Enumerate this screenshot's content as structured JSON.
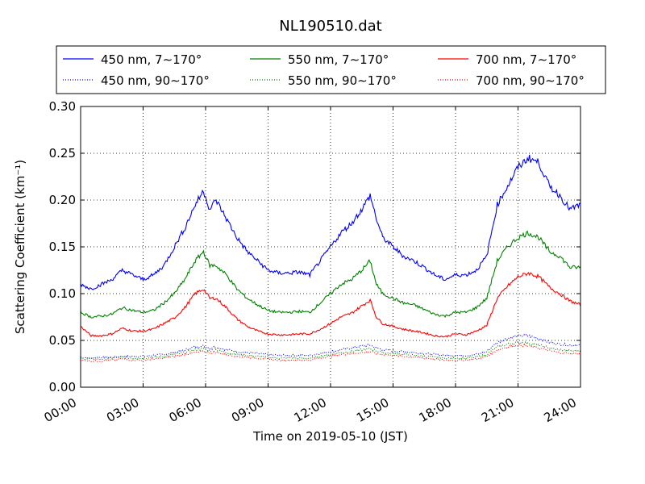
{
  "chart_data": {
    "type": "line",
    "title": "NL190510.dat",
    "xlabel": "Time on 2019-05-10 (JST)",
    "ylabel": "Scattering Coefficient (km⁻¹)",
    "x_unit": "hours",
    "xlim": [
      0,
      24
    ],
    "ylim": [
      0.0,
      0.3
    ],
    "x_ticks": [
      0,
      3,
      6,
      9,
      12,
      15,
      18,
      21,
      24
    ],
    "x_tick_labels": [
      "00:00",
      "03:00",
      "06:00",
      "09:00",
      "12:00",
      "15:00",
      "18:00",
      "21:00",
      "24:00"
    ],
    "y_ticks": [
      0.0,
      0.05,
      0.1,
      0.15,
      0.2,
      0.25,
      0.3
    ],
    "y_tick_labels": [
      "0.00",
      "0.05",
      "0.10",
      "0.15",
      "0.20",
      "0.25",
      "0.30"
    ],
    "grid": true,
    "legend_position": "top, outside plot, 3 columns",
    "x": [
      0,
      0.5,
      1,
      1.5,
      2,
      2.5,
      3,
      3.5,
      4,
      4.5,
      5,
      5.5,
      5.9,
      6.2,
      6.5,
      7,
      7.5,
      8,
      8.5,
      9,
      9.5,
      10,
      10.5,
      11,
      11.5,
      12,
      12.5,
      13,
      13.5,
      13.9,
      14.2,
      14.5,
      15,
      15.5,
      16,
      16.5,
      17,
      17.5,
      18,
      18.5,
      19,
      19.5,
      20,
      20.5,
      21,
      21.5,
      22,
      22.5,
      23,
      23.5,
      24
    ],
    "series": [
      {
        "name": "450 nm, 7∼170°",
        "color": "#0000ff",
        "dash": "solid",
        "values": [
          0.11,
          0.105,
          0.11,
          0.115,
          0.125,
          0.12,
          0.115,
          0.12,
          0.13,
          0.15,
          0.17,
          0.195,
          0.21,
          0.19,
          0.2,
          0.18,
          0.16,
          0.145,
          0.135,
          0.125,
          0.122,
          0.122,
          0.123,
          0.12,
          0.135,
          0.15,
          0.165,
          0.175,
          0.19,
          0.205,
          0.18,
          0.16,
          0.15,
          0.14,
          0.135,
          0.128,
          0.12,
          0.115,
          0.12,
          0.12,
          0.125,
          0.14,
          0.195,
          0.215,
          0.235,
          0.245,
          0.24,
          0.215,
          0.205,
          0.19,
          0.195
        ]
      },
      {
        "name": "550 nm, 7∼170°",
        "color": "#008000",
        "dash": "solid",
        "values": [
          0.08,
          0.075,
          0.076,
          0.078,
          0.085,
          0.082,
          0.08,
          0.082,
          0.09,
          0.1,
          0.115,
          0.135,
          0.145,
          0.13,
          0.13,
          0.12,
          0.105,
          0.095,
          0.088,
          0.082,
          0.08,
          0.08,
          0.081,
          0.08,
          0.09,
          0.1,
          0.11,
          0.115,
          0.125,
          0.135,
          0.11,
          0.1,
          0.095,
          0.09,
          0.088,
          0.083,
          0.078,
          0.076,
          0.08,
          0.08,
          0.085,
          0.095,
          0.135,
          0.15,
          0.16,
          0.165,
          0.16,
          0.145,
          0.14,
          0.128,
          0.128
        ]
      },
      {
        "name": "700 nm, 7∼170°",
        "color": "#ff0000",
        "dash": "solid",
        "values": [
          0.065,
          0.055,
          0.055,
          0.057,
          0.063,
          0.06,
          0.06,
          0.062,
          0.068,
          0.074,
          0.085,
          0.1,
          0.105,
          0.095,
          0.095,
          0.085,
          0.073,
          0.065,
          0.06,
          0.057,
          0.056,
          0.056,
          0.057,
          0.057,
          0.062,
          0.068,
          0.075,
          0.079,
          0.087,
          0.093,
          0.075,
          0.068,
          0.065,
          0.062,
          0.06,
          0.058,
          0.055,
          0.054,
          0.057,
          0.056,
          0.06,
          0.066,
          0.095,
          0.108,
          0.118,
          0.122,
          0.118,
          0.107,
          0.1,
          0.092,
          0.088
        ]
      },
      {
        "name": "450 nm, 90∼170°",
        "color": "#0000ff",
        "dash": "dotted",
        "values": [
          0.032,
          0.031,
          0.032,
          0.032,
          0.033,
          0.033,
          0.033,
          0.034,
          0.035,
          0.037,
          0.04,
          0.043,
          0.044,
          0.042,
          0.043,
          0.04,
          0.038,
          0.037,
          0.036,
          0.035,
          0.034,
          0.034,
          0.034,
          0.034,
          0.036,
          0.038,
          0.04,
          0.042,
          0.044,
          0.045,
          0.042,
          0.04,
          0.039,
          0.038,
          0.037,
          0.036,
          0.035,
          0.034,
          0.034,
          0.034,
          0.035,
          0.038,
          0.048,
          0.052,
          0.055,
          0.055,
          0.052,
          0.048,
          0.046,
          0.045,
          0.045
        ]
      },
      {
        "name": "550 nm, 90∼170°",
        "color": "#008000",
        "dash": "dotted",
        "values": [
          0.031,
          0.03,
          0.03,
          0.031,
          0.032,
          0.031,
          0.031,
          0.032,
          0.033,
          0.035,
          0.037,
          0.04,
          0.041,
          0.039,
          0.04,
          0.037,
          0.035,
          0.034,
          0.033,
          0.032,
          0.031,
          0.031,
          0.031,
          0.031,
          0.033,
          0.035,
          0.037,
          0.038,
          0.04,
          0.041,
          0.039,
          0.037,
          0.036,
          0.035,
          0.034,
          0.033,
          0.032,
          0.031,
          0.031,
          0.031,
          0.032,
          0.035,
          0.043,
          0.046,
          0.048,
          0.047,
          0.045,
          0.042,
          0.04,
          0.039,
          0.039
        ]
      },
      {
        "name": "700 nm, 90∼170°",
        "color": "#ff0000",
        "dash": "dotted",
        "values": [
          0.029,
          0.028,
          0.028,
          0.029,
          0.03,
          0.029,
          0.029,
          0.03,
          0.031,
          0.033,
          0.035,
          0.037,
          0.038,
          0.037,
          0.037,
          0.035,
          0.033,
          0.032,
          0.031,
          0.03,
          0.029,
          0.029,
          0.029,
          0.029,
          0.031,
          0.033,
          0.035,
          0.036,
          0.037,
          0.038,
          0.036,
          0.035,
          0.034,
          0.033,
          0.032,
          0.031,
          0.03,
          0.029,
          0.029,
          0.029,
          0.03,
          0.033,
          0.04,
          0.043,
          0.045,
          0.044,
          0.042,
          0.039,
          0.037,
          0.036,
          0.036
        ]
      }
    ]
  }
}
